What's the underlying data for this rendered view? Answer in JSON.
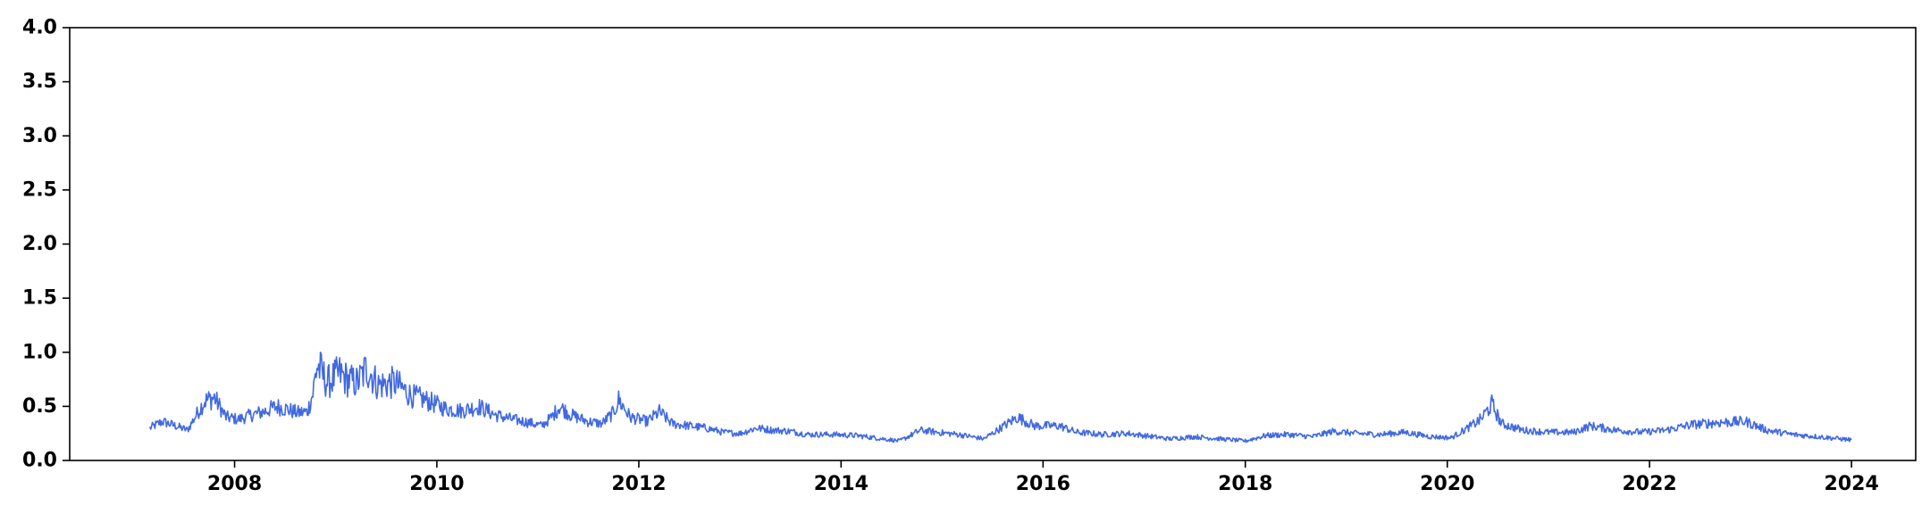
{
  "chart_data": {
    "type": "line",
    "title": "",
    "xlabel": "",
    "ylabel": "",
    "x_range": [
      "2006-05-15",
      "2024-08-20"
    ],
    "ylim": [
      0,
      4.0
    ],
    "x_ticks": [
      {
        "date": "2008-01-01",
        "label": "2008"
      },
      {
        "date": "2010-01-01",
        "label": "2010"
      },
      {
        "date": "2012-01-01",
        "label": "2012"
      },
      {
        "date": "2014-01-01",
        "label": "2014"
      },
      {
        "date": "2016-01-01",
        "label": "2016"
      },
      {
        "date": "2018-01-01",
        "label": "2018"
      },
      {
        "date": "2020-01-01",
        "label": "2020"
      },
      {
        "date": "2022-01-01",
        "label": "2022"
      },
      {
        "date": "2024-01-01",
        "label": "2024"
      }
    ],
    "y_ticks": [
      {
        "value": 0.0,
        "label": "0.0"
      },
      {
        "value": 0.5,
        "label": "0.5"
      },
      {
        "value": 1.0,
        "label": "1.0"
      },
      {
        "value": 1.5,
        "label": "1.5"
      },
      {
        "value": 2.0,
        "label": "2.0"
      },
      {
        "value": 2.5,
        "label": "2.5"
      },
      {
        "value": 3.0,
        "label": "3.0"
      },
      {
        "value": 3.5,
        "label": "3.5"
      },
      {
        "value": 4.0,
        "label": "4.0"
      }
    ],
    "grid": false,
    "legend": "none",
    "series": [
      {
        "color": "#4169E1",
        "points": [
          [
            "2007-03-01",
            0.3
          ],
          [
            "2007-04-15",
            0.36
          ],
          [
            "2007-06-01",
            0.32
          ],
          [
            "2007-07-15",
            0.28
          ],
          [
            "2007-08-15",
            0.42
          ],
          [
            "2007-09-15",
            0.55
          ],
          [
            "2007-10-20",
            0.58
          ],
          [
            "2007-12-01",
            0.4
          ],
          [
            "2008-01-15",
            0.38
          ],
          [
            "2008-03-01",
            0.42
          ],
          [
            "2008-04-15",
            0.45
          ],
          [
            "2008-06-01",
            0.5
          ],
          [
            "2008-07-01",
            0.48
          ],
          [
            "2008-08-15",
            0.44
          ],
          [
            "2008-09-20",
            0.45
          ],
          [
            "2008-10-10",
            0.62
          ],
          [
            "2008-10-25",
            0.88
          ],
          [
            "2008-12-01",
            0.72
          ],
          [
            "2009-01-15",
            0.8
          ],
          [
            "2009-02-15",
            0.74
          ],
          [
            "2009-03-20",
            0.72
          ],
          [
            "2009-04-25",
            0.86
          ],
          [
            "2009-06-01",
            0.7
          ],
          [
            "2009-08-01",
            0.72
          ],
          [
            "2009-10-01",
            0.6
          ],
          [
            "2009-12-01",
            0.55
          ],
          [
            "2010-02-01",
            0.48
          ],
          [
            "2010-04-01",
            0.46
          ],
          [
            "2010-06-01",
            0.5
          ],
          [
            "2010-08-01",
            0.42
          ],
          [
            "2010-10-01",
            0.38
          ],
          [
            "2010-12-01",
            0.35
          ],
          [
            "2011-01-15",
            0.32
          ],
          [
            "2011-02-20",
            0.4
          ],
          [
            "2011-03-20",
            0.5
          ],
          [
            "2011-05-01",
            0.42
          ],
          [
            "2011-07-01",
            0.36
          ],
          [
            "2011-08-20",
            0.34
          ],
          [
            "2011-10-01",
            0.44
          ],
          [
            "2011-10-20",
            0.56
          ],
          [
            "2011-12-01",
            0.4
          ],
          [
            "2012-02-01",
            0.36
          ],
          [
            "2012-03-15",
            0.45
          ],
          [
            "2012-05-01",
            0.34
          ],
          [
            "2012-07-01",
            0.32
          ],
          [
            "2012-09-01",
            0.3
          ],
          [
            "2012-11-01",
            0.26
          ],
          [
            "2013-01-01",
            0.25
          ],
          [
            "2013-03-01",
            0.3
          ],
          [
            "2013-05-01",
            0.28
          ],
          [
            "2013-07-01",
            0.27
          ],
          [
            "2013-09-01",
            0.24
          ],
          [
            "2013-12-01",
            0.24
          ],
          [
            "2014-03-01",
            0.23
          ],
          [
            "2014-06-01",
            0.2
          ],
          [
            "2014-08-01",
            0.18
          ],
          [
            "2014-10-15",
            0.28
          ],
          [
            "2014-12-15",
            0.26
          ],
          [
            "2015-03-01",
            0.24
          ],
          [
            "2015-06-01",
            0.2
          ],
          [
            "2015-08-25",
            0.34
          ],
          [
            "2015-10-01",
            0.4
          ],
          [
            "2015-12-01",
            0.32
          ],
          [
            "2016-03-01",
            0.32
          ],
          [
            "2016-05-01",
            0.26
          ],
          [
            "2016-08-01",
            0.24
          ],
          [
            "2016-11-01",
            0.25
          ],
          [
            "2017-01-01",
            0.23
          ],
          [
            "2017-04-01",
            0.2
          ],
          [
            "2017-07-01",
            0.22
          ],
          [
            "2017-10-01",
            0.2
          ],
          [
            "2018-01-01",
            0.18
          ],
          [
            "2018-03-15",
            0.23
          ],
          [
            "2018-06-01",
            0.24
          ],
          [
            "2018-09-01",
            0.22
          ],
          [
            "2018-11-15",
            0.27
          ],
          [
            "2019-02-01",
            0.25
          ],
          [
            "2019-05-01",
            0.24
          ],
          [
            "2019-08-01",
            0.26
          ],
          [
            "2019-11-01",
            0.22
          ],
          [
            "2020-01-15",
            0.21
          ],
          [
            "2020-03-15",
            0.3
          ],
          [
            "2020-05-01",
            0.38
          ],
          [
            "2020-06-10",
            0.52
          ],
          [
            "2020-07-15",
            0.34
          ],
          [
            "2020-10-01",
            0.28
          ],
          [
            "2021-01-01",
            0.26
          ],
          [
            "2021-04-01",
            0.26
          ],
          [
            "2021-06-01",
            0.32
          ],
          [
            "2021-09-01",
            0.28
          ],
          [
            "2021-12-01",
            0.26
          ],
          [
            "2022-03-01",
            0.28
          ],
          [
            "2022-06-01",
            0.33
          ],
          [
            "2022-09-01",
            0.35
          ],
          [
            "2022-12-15",
            0.36
          ],
          [
            "2023-03-01",
            0.28
          ],
          [
            "2023-06-01",
            0.24
          ],
          [
            "2023-09-01",
            0.22
          ],
          [
            "2023-12-31",
            0.19
          ]
        ]
      }
    ]
  }
}
